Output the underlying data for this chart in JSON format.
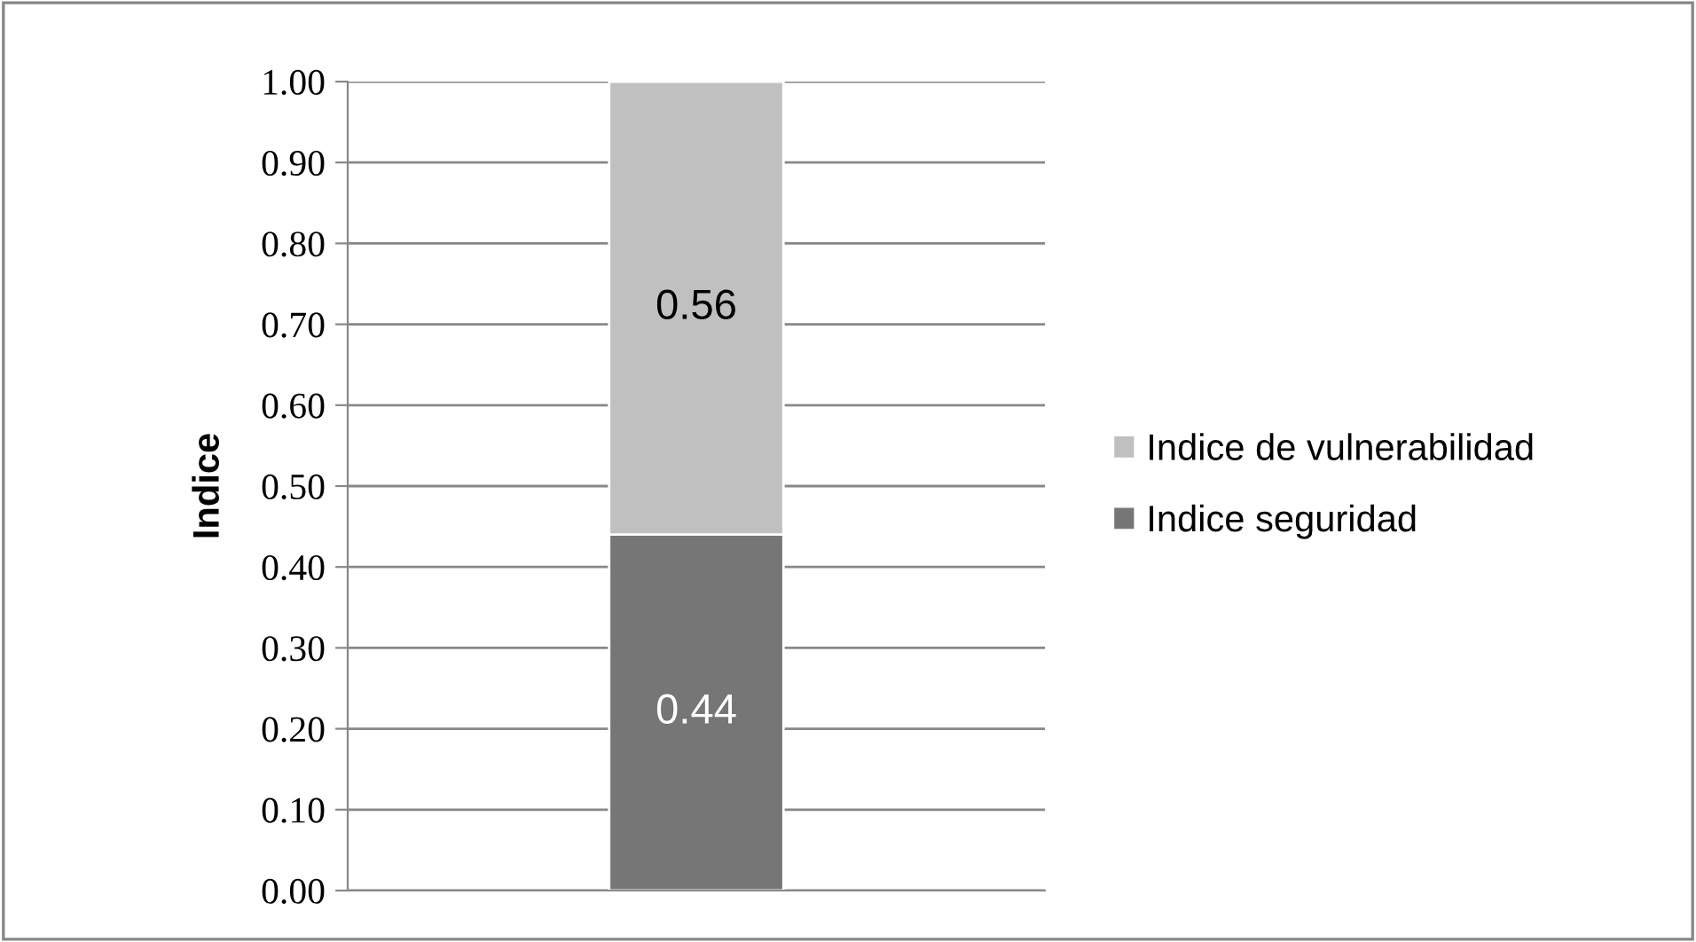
{
  "chart_data": {
    "type": "bar",
    "stacked": true,
    "ylabel": "Indice",
    "categories": [
      null
    ],
    "series": [
      {
        "name": "Indice seguridad",
        "color": "#767676",
        "values": [
          0.44
        ]
      },
      {
        "name": "Indice de vulnerabilidad",
        "color": "#c0c0c0",
        "values": [
          0.56
        ]
      }
    ],
    "ylim": [
      0,
      1
    ],
    "yticks": [
      {
        "value": 0,
        "label": "0.00"
      },
      {
        "value": 0.1,
        "label": "0.10"
      },
      {
        "value": 0.2,
        "label": "0.20"
      },
      {
        "value": 0.3,
        "label": "0.30"
      },
      {
        "value": 0.4,
        "label": "0.40"
      },
      {
        "value": 0.5,
        "label": "0.50"
      },
      {
        "value": 0.6,
        "label": "0.60"
      },
      {
        "value": 0.7,
        "label": "0.70"
      },
      {
        "value": 0.8,
        "label": "0.80"
      },
      {
        "value": 0.9,
        "label": "0.90"
      },
      {
        "value": 1,
        "label": "1.00"
      }
    ],
    "grid": "y",
    "legend": "right",
    "data_labels": true
  }
}
